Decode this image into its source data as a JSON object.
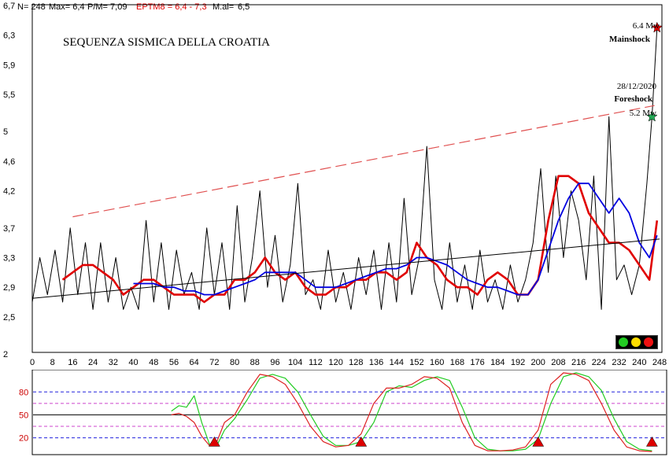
{
  "header": {
    "n": "N= 248",
    "max": "Max= 6,4",
    "pm": "P/M= 7,09",
    "eptm": "EPTM8 = 6,4 - 7,3",
    "mal": "M.al= ",
    "mal_value": "6,5"
  },
  "colors": {
    "black": "#000000",
    "red": "#e00000",
    "blue": "#0000e0",
    "trend_dash": "#e05050",
    "osc_green": "#22cc22",
    "osc_red": "#dd2222",
    "osc_pink": "#cc44cc",
    "osc_blue": "#2222dd",
    "axis_label_red": "#cc0000"
  },
  "traffic_lights": [
    "green-light",
    "yellow-light",
    "red-light"
  ],
  "chart_data": [
    {
      "type": "line",
      "title": "SEQUENZA SISMICA DELLA CROATIA",
      "xlim": [
        0,
        248
      ],
      "ylim": [
        2,
        6.7
      ],
      "x_ticks": [
        "0",
        "8",
        "16",
        "24",
        "32",
        "40",
        "48",
        "56",
        "64",
        "72",
        "80",
        "88",
        "96",
        "104",
        "112",
        "120",
        "128",
        "136",
        "144",
        "152",
        "160",
        "168",
        "176",
        "184",
        "192",
        "200",
        "208",
        "216",
        "224",
        "232",
        "240",
        "248"
      ],
      "y_ticks": [
        "2",
        "2,5",
        "2,9",
        "3,3",
        "3,7",
        "4,2",
        "4,6",
        "5",
        "5,5",
        "5,9",
        "6,3",
        "6,7"
      ],
      "grid": false,
      "annotations": [
        {
          "text": "6.4 Mw",
          "x": 247,
          "y": 6.4
        },
        {
          "text": "Mainshock",
          "x": 247,
          "y": 6.4
        },
        {
          "text": "28/12/2020",
          "x": 245,
          "y": 5.2
        },
        {
          "text": "Foreshock",
          "x": 245,
          "y": 5.2
        },
        {
          "text": "5.2 Mw",
          "x": 245,
          "y": 5.2
        }
      ],
      "markers": [
        {
          "name": "mainshock-star",
          "x": 247,
          "y": 6.4,
          "color": "#e00000"
        },
        {
          "name": "foreshock-star",
          "x": 245,
          "y": 5.2,
          "color": "#22aa55"
        }
      ],
      "series": [
        {
          "key": "magnitude",
          "color": "#000000",
          "x": [
            0,
            3,
            6,
            9,
            12,
            15,
            18,
            21,
            24,
            27,
            30,
            33,
            36,
            39,
            42,
            45,
            48,
            51,
            54,
            57,
            60,
            63,
            66,
            69,
            72,
            75,
            78,
            81,
            84,
            87,
            90,
            93,
            96,
            99,
            102,
            105,
            108,
            111,
            114,
            117,
            120,
            123,
            126,
            129,
            132,
            135,
            138,
            141,
            144,
            147,
            150,
            153,
            156,
            159,
            162,
            165,
            168,
            171,
            174,
            177,
            180,
            183,
            186,
            189,
            192,
            195,
            198,
            201,
            204,
            207,
            210,
            213,
            216,
            219,
            222,
            225,
            228,
            231,
            234,
            237,
            240,
            243,
            245,
            247
          ],
          "y": [
            2.7,
            3.3,
            2.8,
            3.4,
            2.7,
            3.7,
            2.8,
            3.5,
            2.6,
            3.5,
            2.7,
            3.3,
            2.6,
            2.9,
            2.6,
            3.8,
            2.7,
            3.5,
            2.6,
            3.4,
            2.8,
            3.1,
            2.6,
            3.7,
            2.8,
            3.5,
            2.6,
            4.0,
            2.7,
            3.3,
            4.2,
            2.9,
            3.6,
            2.7,
            3.2,
            4.3,
            2.8,
            3.0,
            2.6,
            3.4,
            2.7,
            3.1,
            2.6,
            3.3,
            2.8,
            3.4,
            2.6,
            3.5,
            2.7,
            4.1,
            2.8,
            3.3,
            4.8,
            3.0,
            2.6,
            3.5,
            2.7,
            3.2,
            2.6,
            3.4,
            2.7,
            3.0,
            2.6,
            3.2,
            2.7,
            3.0,
            3.5,
            4.5,
            3.1,
            4.4,
            3.3,
            4.2,
            3.8,
            3.0,
            4.4,
            2.6,
            5.2,
            3.0,
            3.2,
            2.8,
            3.2,
            4.3,
            5.2,
            6.4
          ]
        },
        {
          "key": "moving-average-red",
          "color": "#e00000",
          "x": [
            12,
            16,
            20,
            24,
            28,
            32,
            36,
            40,
            44,
            48,
            52,
            56,
            60,
            64,
            68,
            72,
            76,
            80,
            84,
            88,
            92,
            96,
            100,
            104,
            108,
            112,
            116,
            120,
            124,
            128,
            132,
            136,
            140,
            144,
            148,
            152,
            156,
            160,
            164,
            168,
            172,
            176,
            180,
            184,
            188,
            192,
            196,
            200,
            204,
            208,
            212,
            216,
            220,
            224,
            228,
            232,
            236,
            240,
            244,
            247
          ],
          "y": [
            3.0,
            3.1,
            3.2,
            3.2,
            3.1,
            3.0,
            2.8,
            2.9,
            3.0,
            3.0,
            2.9,
            2.8,
            2.8,
            2.8,
            2.7,
            2.8,
            2.8,
            3.0,
            3.0,
            3.1,
            3.3,
            3.1,
            3.0,
            3.1,
            2.9,
            2.8,
            2.8,
            2.9,
            2.9,
            3.0,
            3.0,
            3.1,
            3.1,
            3.0,
            3.1,
            3.5,
            3.3,
            3.2,
            3.0,
            2.9,
            2.9,
            2.8,
            3.0,
            3.1,
            3.0,
            2.8,
            2.8,
            3.0,
            3.8,
            4.4,
            4.4,
            4.3,
            3.9,
            3.7,
            3.5,
            3.5,
            3.4,
            3.2,
            3.0,
            3.8
          ]
        },
        {
          "key": "moving-average-blue",
          "color": "#0000e0",
          "x": [
            40,
            44,
            48,
            52,
            56,
            60,
            64,
            68,
            72,
            76,
            80,
            84,
            88,
            92,
            96,
            100,
            104,
            108,
            112,
            116,
            120,
            124,
            128,
            132,
            136,
            140,
            144,
            148,
            152,
            156,
            160,
            164,
            168,
            172,
            176,
            180,
            184,
            188,
            192,
            196,
            200,
            204,
            208,
            212,
            216,
            220,
            224,
            228,
            232,
            236,
            240,
            244,
            247
          ],
          "y": [
            2.95,
            2.95,
            2.95,
            2.9,
            2.9,
            2.85,
            2.85,
            2.8,
            2.8,
            2.85,
            2.9,
            2.95,
            3.0,
            3.1,
            3.1,
            3.1,
            3.1,
            3.0,
            2.9,
            2.9,
            2.9,
            2.95,
            3.0,
            3.05,
            3.1,
            3.15,
            3.15,
            3.2,
            3.3,
            3.3,
            3.25,
            3.2,
            3.1,
            3.0,
            2.95,
            2.9,
            2.9,
            2.85,
            2.8,
            2.8,
            3.0,
            3.4,
            3.8,
            4.1,
            4.3,
            4.3,
            4.1,
            3.9,
            4.1,
            3.9,
            3.5,
            3.3,
            3.6
          ]
        },
        {
          "key": "regression-line",
          "color": "#000000",
          "x": [
            0,
            248
          ],
          "y": [
            2.75,
            3.55
          ]
        },
        {
          "key": "trend-dashed",
          "color": "#e05050",
          "x": [
            16,
            246
          ],
          "y": [
            3.85,
            5.35
          ]
        }
      ]
    },
    {
      "type": "line",
      "xlim": [
        0,
        248
      ],
      "ylim": [
        0,
        105
      ],
      "y_ticks": [
        "20",
        "50",
        "80"
      ],
      "reference_lines": [
        {
          "y": 80,
          "color": "#2222dd",
          "style": "dashed"
        },
        {
          "y": 65,
          "color": "#cc44cc",
          "style": "dashed"
        },
        {
          "y": 50,
          "color": "#000000",
          "style": "solid"
        },
        {
          "y": 35,
          "color": "#cc44cc",
          "style": "dashed"
        },
        {
          "y": 20,
          "color": "#2222dd",
          "style": "dashed"
        }
      ],
      "markers": [
        {
          "name": "signal-triangle",
          "x": 72,
          "y": 15
        },
        {
          "name": "signal-triangle",
          "x": 130,
          "y": 15
        },
        {
          "name": "signal-triangle",
          "x": 200,
          "y": 15
        },
        {
          "name": "signal-triangle",
          "x": 245,
          "y": 15
        }
      ],
      "series": [
        {
          "key": "oscillator-green",
          "color": "#22cc22",
          "x": [
            55,
            58,
            61,
            64,
            67,
            70,
            73,
            76,
            80,
            85,
            90,
            95,
            100,
            105,
            110,
            115,
            120,
            125,
            130,
            135,
            140,
            145,
            150,
            155,
            160,
            165,
            170,
            175,
            180,
            185,
            190,
            195,
            200,
            205,
            210,
            215,
            220,
            225,
            230,
            235,
            240,
            245
          ],
          "y": [
            55,
            62,
            60,
            75,
            40,
            12,
            10,
            30,
            45,
            70,
            98,
            103,
            98,
            80,
            50,
            22,
            10,
            10,
            15,
            40,
            80,
            88,
            86,
            95,
            100,
            95,
            60,
            20,
            5,
            3,
            3,
            5,
            18,
            65,
            100,
            105,
            100,
            82,
            45,
            15,
            5,
            3
          ]
        },
        {
          "key": "oscillator-red",
          "color": "#dd2222",
          "x": [
            55,
            58,
            61,
            64,
            67,
            70,
            73,
            76,
            80,
            85,
            90,
            95,
            100,
            105,
            110,
            115,
            120,
            125,
            130,
            135,
            140,
            145,
            150,
            155,
            160,
            165,
            170,
            175,
            180,
            185,
            190,
            195,
            200,
            205,
            210,
            215,
            220,
            225,
            230,
            235,
            240,
            245
          ],
          "y": [
            50,
            52,
            48,
            40,
            22,
            10,
            15,
            40,
            50,
            80,
            103,
            100,
            90,
            65,
            35,
            15,
            8,
            10,
            25,
            65,
            85,
            85,
            90,
            100,
            98,
            85,
            40,
            10,
            3,
            3,
            4,
            8,
            30,
            90,
            105,
            103,
            95,
            65,
            30,
            8,
            3,
            2
          ]
        }
      ]
    }
  ]
}
